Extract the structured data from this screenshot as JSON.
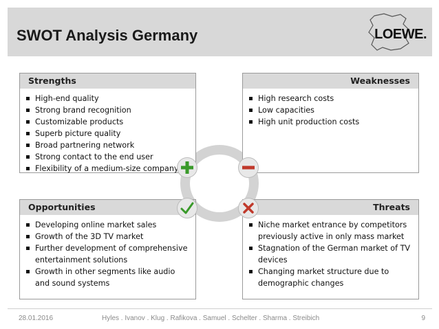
{
  "header": {
    "title": "SWOT Analysis Germany",
    "logo_text": "LOEWE."
  },
  "strengths": {
    "heading": "Strengths",
    "items": [
      "High-end quality",
      "Strong brand recognition",
      "Customizable products",
      "Superb picture quality",
      "Broad partnering network",
      "Strong contact to the end user",
      "Flexibility of a medium-size company"
    ]
  },
  "weaknesses": {
    "heading": "Weaknesses",
    "items": [
      "High research costs",
      "Low capacities",
      "High unit production costs"
    ]
  },
  "opportunities": {
    "heading": "Opportunities",
    "items": [
      "Developing online market sales",
      "Growth of the 3D TV market",
      "Further development of comprehensive entertainment solutions",
      "Growth in other segments like audio and sound systems"
    ]
  },
  "threats": {
    "heading": "Threats",
    "items": [
      "Niche market entrance by competitors previously active in only mass market",
      "Stagnation of the German market of TV devices",
      "Changing market structure due to demographic changes"
    ]
  },
  "symbols": {
    "strengths": "plus-icon",
    "weaknesses": "minus-icon",
    "opportunities": "check-icon",
    "threats": "x-icon",
    "green": "#3a9a2a",
    "red": "#c0392b"
  },
  "footer": {
    "date": "28.01.2016",
    "authors": "Hyles . Ivanov . Klug . Rafikova . Samuel . Schelter . Sharma . Streibich",
    "page": "9"
  }
}
